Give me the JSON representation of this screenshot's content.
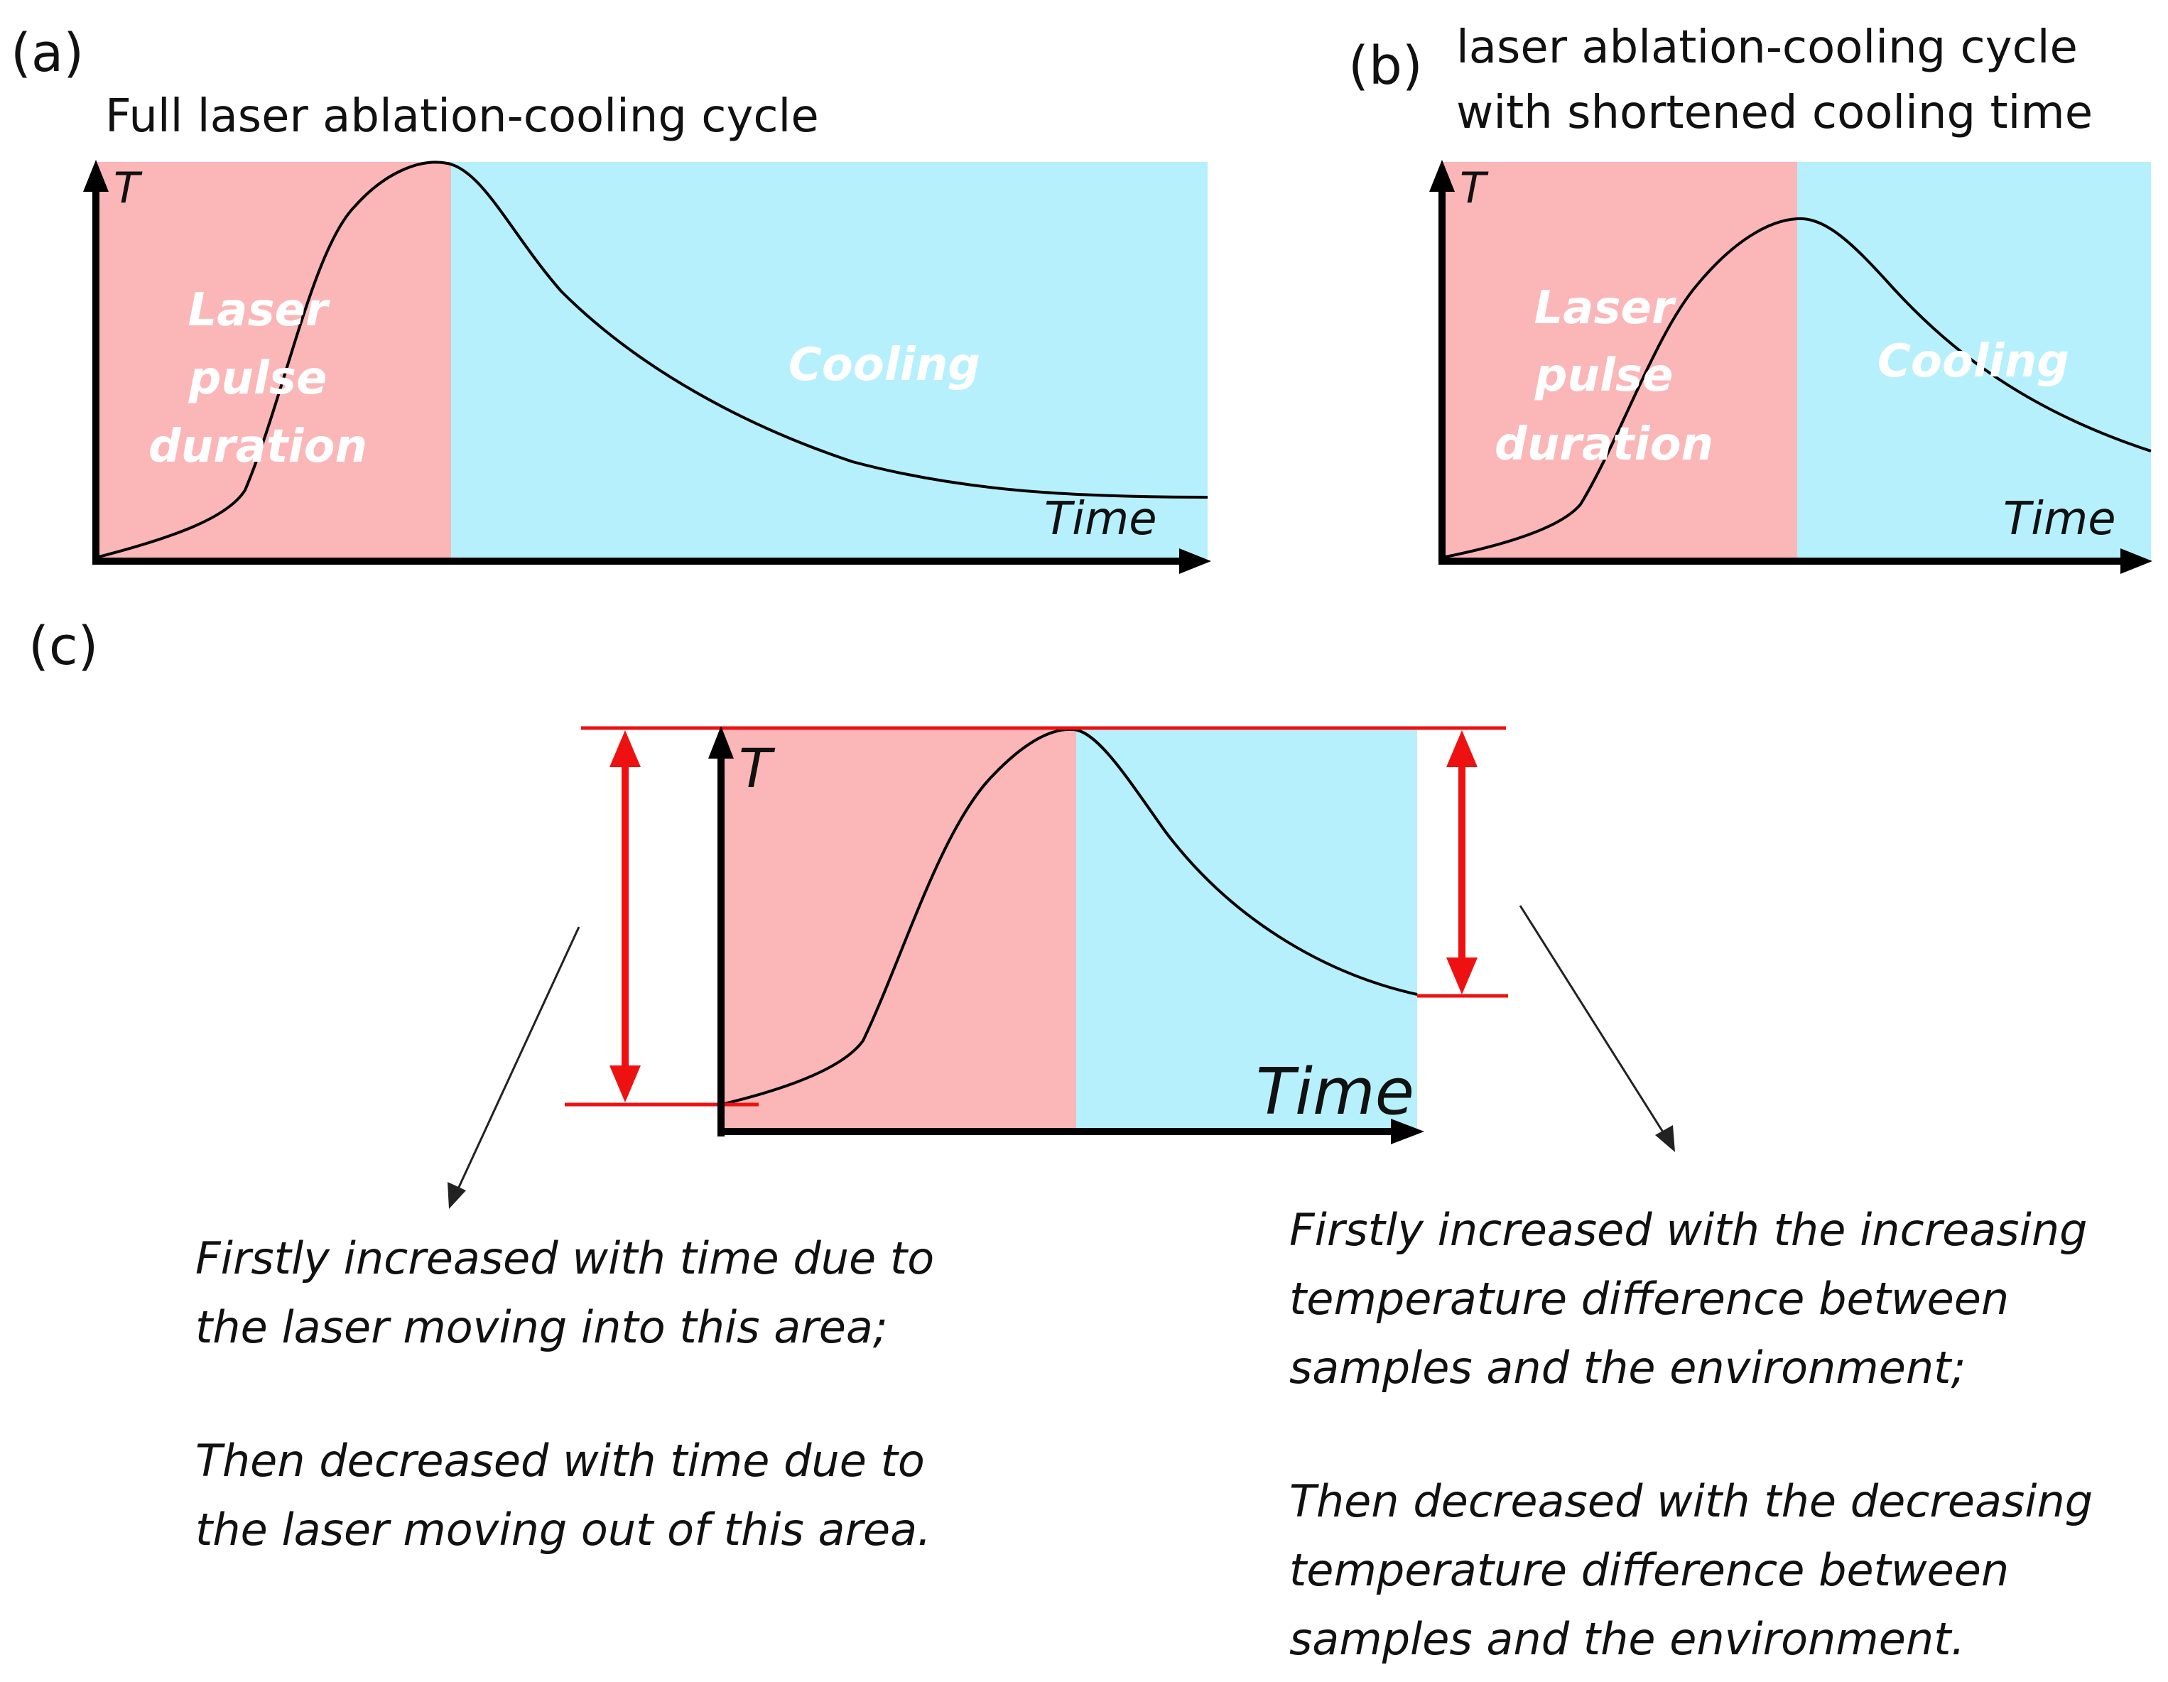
{
  "colors": {
    "laser_region": "#fbb6b8",
    "cooling_region": "#b6f0fc",
    "axis": "#000000",
    "curve": "#000000",
    "range_marker": "#ee1111",
    "pointer": "#222222"
  },
  "panel_a": {
    "letter": "(a)",
    "title": "Full laser ablation-cooling cycle",
    "y_axis_label": "T",
    "x_axis_label": "Time",
    "laser_label": [
      "Laser",
      "pulse",
      "duration"
    ],
    "cooling_label": "Cooling"
  },
  "panel_b": {
    "letter": "(b)",
    "title_lines": [
      "laser ablation-cooling cycle",
      "with shortened  cooling time"
    ],
    "y_axis_label": "T",
    "x_axis_label": "Time",
    "laser_label": [
      "Laser",
      "pulse",
      "duration"
    ],
    "cooling_label": "Cooling"
  },
  "panel_c": {
    "letter": "(c)",
    "y_axis_label": "T",
    "x_axis_label": "Time",
    "left_note": {
      "lines_1": [
        "Firstly increased with time due to",
        "the laser moving into this area;"
      ],
      "lines_2": [
        "Then decreased with time due to",
        "the laser moving out of this area."
      ]
    },
    "right_note": {
      "lines_1": [
        "Firstly increased with the increasing",
        "temperature difference between",
        "samples and the environment;"
      ],
      "lines_2": [
        "Then decreased with the decreasing",
        "temperature difference between",
        "samples and the environment."
      ]
    }
  }
}
